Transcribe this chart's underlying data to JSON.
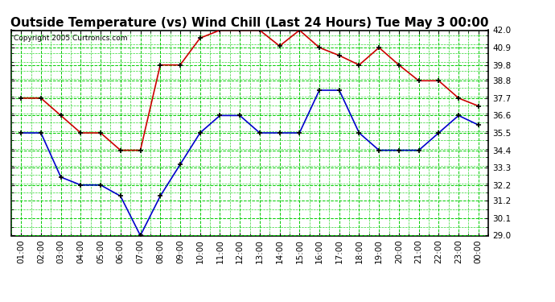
{
  "title": "Outside Temperature (vs) Wind Chill (Last 24 Hours) Tue May 3 00:00",
  "copyright": "Copyright 2005 Curtronics.com",
  "x_labels": [
    "01:00",
    "02:00",
    "03:00",
    "04:00",
    "05:00",
    "06:00",
    "07:00",
    "08:00",
    "09:00",
    "10:00",
    "11:00",
    "12:00",
    "13:00",
    "14:00",
    "15:00",
    "16:00",
    "17:00",
    "18:00",
    "19:00",
    "20:00",
    "21:00",
    "22:00",
    "23:00",
    "00:00"
  ],
  "outside_temp": [
    37.7,
    37.7,
    36.6,
    35.5,
    35.5,
    34.4,
    34.4,
    39.8,
    39.8,
    41.5,
    42.0,
    42.0,
    42.0,
    41.0,
    42.0,
    40.9,
    40.4,
    39.8,
    40.9,
    39.8,
    38.8,
    38.8,
    37.7,
    37.2
  ],
  "wind_chill": [
    35.5,
    35.5,
    32.7,
    32.2,
    32.2,
    31.5,
    29.0,
    31.5,
    33.5,
    35.5,
    36.6,
    36.6,
    35.5,
    35.5,
    35.5,
    38.2,
    38.2,
    35.5,
    34.4,
    34.4,
    34.4,
    35.5,
    36.6,
    36.0
  ],
  "temp_color": "#cc0000",
  "wind_color": "#0000cc",
  "bg_color": "#ffffff",
  "grid_color": "#00cc00",
  "ylim": [
    29.0,
    42.0
  ],
  "yticks": [
    29.0,
    30.1,
    31.2,
    32.2,
    33.3,
    34.4,
    35.5,
    36.6,
    37.7,
    38.8,
    39.8,
    40.9,
    42.0
  ],
  "title_fontsize": 11,
  "label_fontsize": 7.5,
  "copyright_fontsize": 6.5
}
